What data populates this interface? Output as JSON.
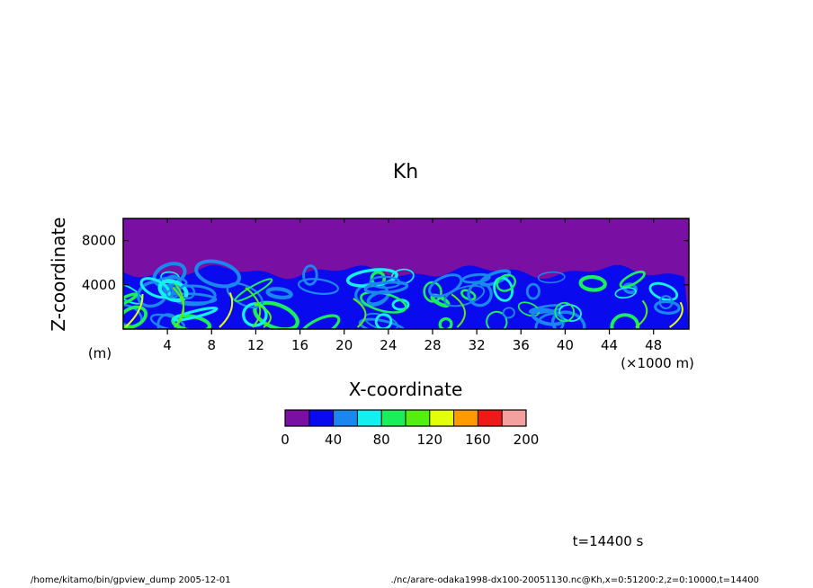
{
  "chart_data": {
    "type": "heatmap",
    "title": "Kh",
    "xlabel": "X-coordinate",
    "ylabel": "Z-coordinate",
    "x_unit": "(×1000 m)",
    "y_unit": "(m)",
    "xlim": [
      0,
      51.2
    ],
    "ylim": [
      0,
      10000
    ],
    "x_ticks": [
      4,
      8,
      12,
      16,
      20,
      24,
      28,
      32,
      36,
      40,
      44,
      48
    ],
    "y_ticks": [
      4000,
      8000
    ],
    "colorbar": {
      "boundaries": [
        0,
        20,
        40,
        60,
        80,
        100,
        120,
        140,
        160,
        180,
        200
      ],
      "labels": [
        0,
        40,
        80,
        120,
        160,
        200
      ],
      "colors": [
        "#7a0fa3",
        "#0a0aee",
        "#1a86ef",
        "#14f0f0",
        "#1aee5a",
        "#55ee11",
        "#e4ff0a",
        "#ff9a00",
        "#ee1a1a",
        "#f5a0a0"
      ]
    },
    "turbulent_layer_top_m": 5500,
    "background_value_range": [
      0,
      20
    ]
  },
  "time_label": "t=14400 s",
  "footer": {
    "left": "/home/kitamo/bin/gpview_dump   2005-12-01",
    "right": "./nc/arare-odaka1998-dx100-20051130.nc@Kh,x=0:51200:2,z=0:10000,t=14400"
  }
}
